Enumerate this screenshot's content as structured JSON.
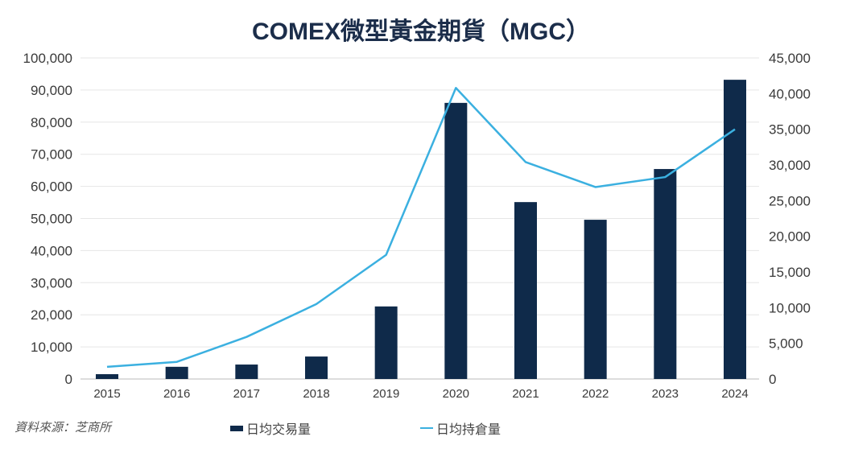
{
  "chart_data": {
    "type": "bar+line",
    "title": "COMEX微型黃金期貨（MGC）",
    "categories": [
      "2015",
      "2016",
      "2017",
      "2018",
      "2019",
      "2020",
      "2021",
      "2022",
      "2023",
      "2024"
    ],
    "series": [
      {
        "name": "日均交易量",
        "type": "bar",
        "axis": "left",
        "color": "#0f2a4a",
        "values": [
          1500,
          3800,
          4500,
          7000,
          22600,
          86000,
          55100,
          49600,
          65400,
          93200
        ]
      },
      {
        "name": "日均持倉量",
        "type": "line",
        "axis": "right",
        "color": "#3bb0e0",
        "values": [
          1700,
          2400,
          5900,
          10500,
          17400,
          40800,
          30400,
          26900,
          28300,
          35000
        ]
      }
    ],
    "ylim_left": [
      0,
      100000
    ],
    "ylim_right": [
      0,
      45000
    ],
    "yticks_left": [
      "0",
      "10,000",
      "20,000",
      "30,000",
      "40,000",
      "50,000",
      "60,000",
      "70,000",
      "80,000",
      "90,000",
      "100,000"
    ],
    "yticks_right": [
      "0",
      "5,000",
      "10,000",
      "15,000",
      "20,000",
      "25,000",
      "30,000",
      "35,000",
      "40,000",
      "45,000"
    ],
    "grid": true,
    "legend": "bottom"
  },
  "source": "資料來源：芝商所"
}
